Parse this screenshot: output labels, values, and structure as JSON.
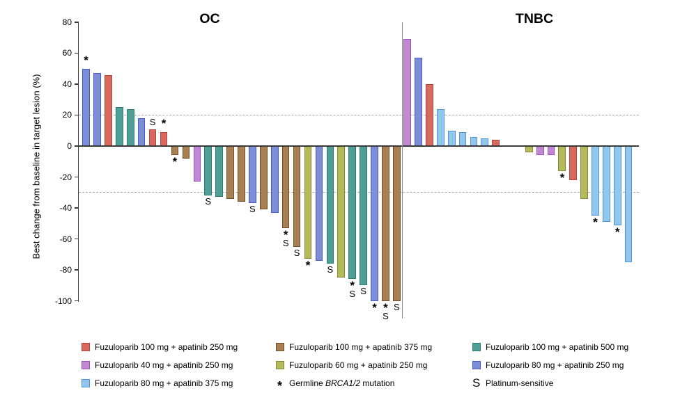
{
  "figure": {
    "background": "#ffffff"
  },
  "chart_data": {
    "type": "bar",
    "subtype": "waterfall",
    "title": "",
    "ylabel": "Best change from baseline in target lesion (%)",
    "ylim": [
      -100,
      80
    ],
    "yticks": [
      80,
      60,
      40,
      20,
      0,
      -20,
      -40,
      -60,
      -80,
      -100
    ],
    "reference_lines": [
      20,
      -30
    ],
    "grid": "off",
    "legend_position": "bottom",
    "groups": {
      "fz100_ap250": {
        "label": "Fuzuloparib 100 mg + apatinib 250 mg",
        "fill": "#d7695f",
        "stroke": "#b2443a"
      },
      "fz40_ap250": {
        "label": "Fuzuloparib 40 mg + apatinib 250 mg",
        "fill": "#c289d3",
        "stroke": "#9c50bd"
      },
      "fz80_ap375": {
        "label": "Fuzuloparib 80 mg + apatinib 375 mg",
        "fill": "#93c6ee",
        "stroke": "#4e95d6"
      },
      "fz100_ap375": {
        "label": "Fuzuloparib 100 mg + apatinib 375 mg",
        "fill": "#a87f52",
        "stroke": "#6d4f26"
      },
      "fz60_ap250": {
        "label": "Fuzuloparib 60 mg + apatinib 250 mg",
        "fill": "#b4b95c",
        "stroke": "#838833"
      },
      "fz100_ap500": {
        "label": "Fuzuloparib 100 mg + apatinib 500 mg",
        "fill": "#4f9f96",
        "stroke": "#2d7c72"
      },
      "fz80_ap250": {
        "label": "Fuzuloparib 80 mg + apatinib 250 mg",
        "fill": "#7e8ed6",
        "stroke": "#4859c8"
      }
    },
    "flag_meanings": {
      "*": "Germline BRCA1/2 mutation",
      "S": "Platinum-sensitive"
    },
    "panels": [
      {
        "title": "OC",
        "bars": [
          {
            "v": 50,
            "g": "fz80_ap250",
            "f": [
              "*"
            ]
          },
          {
            "v": 47,
            "g": "fz80_ap250"
          },
          {
            "v": 46,
            "g": "fz100_ap250"
          },
          {
            "v": 25,
            "g": "fz100_ap500"
          },
          {
            "v": 24,
            "g": "fz100_ap500"
          },
          {
            "v": 18,
            "g": "fz80_ap250"
          },
          {
            "v": 11,
            "g": "fz100_ap250",
            "f": [
              "S"
            ]
          },
          {
            "v": 9,
            "g": "fz100_ap250",
            "f": [
              "*"
            ]
          },
          {
            "v": -6,
            "g": "fz100_ap375",
            "f": [
              "*"
            ]
          },
          {
            "v": -8,
            "g": "fz100_ap375"
          },
          {
            "v": -23,
            "g": "fz40_ap250"
          },
          {
            "v": -32,
            "g": "fz100_ap500",
            "f": [
              "S"
            ]
          },
          {
            "v": -33,
            "g": "fz100_ap500"
          },
          {
            "v": -34,
            "g": "fz100_ap375"
          },
          {
            "v": -36,
            "g": "fz100_ap375"
          },
          {
            "v": -37,
            "g": "fz80_ap250",
            "f": [
              "S"
            ]
          },
          {
            "v": -41,
            "g": "fz100_ap375"
          },
          {
            "v": -43,
            "g": "fz80_ap250"
          },
          {
            "v": -53,
            "g": "fz100_ap375",
            "f": [
              "*",
              "S"
            ]
          },
          {
            "v": -65,
            "g": "fz100_ap375",
            "f": [
              "S"
            ]
          },
          {
            "v": -73,
            "g": "fz60_ap250",
            "f": [
              "*"
            ]
          },
          {
            "v": -74,
            "g": "fz80_ap250"
          },
          {
            "v": -76,
            "g": "fz100_ap500",
            "f": [
              "S"
            ]
          },
          {
            "v": -85,
            "g": "fz60_ap250"
          },
          {
            "v": -86,
            "g": "fz100_ap500",
            "f": [
              "*",
              "S"
            ]
          },
          {
            "v": -90,
            "g": "fz100_ap500",
            "f": [
              "S"
            ]
          },
          {
            "v": -100,
            "g": "fz80_ap250",
            "f": [
              "*"
            ]
          },
          {
            "v": -100,
            "g": "fz100_ap375",
            "f": [
              "*",
              "S"
            ]
          },
          {
            "v": -100,
            "g": "fz100_ap375",
            "f": [
              "S"
            ]
          }
        ]
      },
      {
        "title": "TNBC",
        "bars": [
          {
            "v": 69,
            "g": "fz40_ap250"
          },
          {
            "v": 57,
            "g": "fz80_ap250"
          },
          {
            "v": 40,
            "g": "fz100_ap250"
          },
          {
            "v": 24,
            "g": "fz80_ap375"
          },
          {
            "v": 10,
            "g": "fz80_ap375"
          },
          {
            "v": 9,
            "g": "fz80_ap375"
          },
          {
            "v": 6,
            "g": "fz80_ap375"
          },
          {
            "v": 5,
            "g": "fz80_ap375"
          },
          {
            "v": 4,
            "g": "fz100_ap250"
          },
          {
            "v": 0,
            "g": null
          },
          {
            "v": 0,
            "g": null
          },
          {
            "v": -4,
            "g": "fz60_ap250"
          },
          {
            "v": -6,
            "g": "fz40_ap250"
          },
          {
            "v": -6,
            "g": "fz40_ap250"
          },
          {
            "v": -16,
            "g": "fz60_ap250",
            "f": [
              "*"
            ]
          },
          {
            "v": -22,
            "g": "fz100_ap250"
          },
          {
            "v": -34,
            "g": "fz60_ap250"
          },
          {
            "v": -45,
            "g": "fz80_ap375",
            "f": [
              "*"
            ]
          },
          {
            "v": -49,
            "g": "fz80_ap375"
          },
          {
            "v": -51,
            "g": "fz80_ap375",
            "f": [
              "*"
            ]
          },
          {
            "v": -75,
            "g": "fz80_ap375"
          }
        ]
      }
    ]
  },
  "legend": {
    "items": [
      {
        "swatch": "fz100_ap250",
        "label": "Fuzuloparib 100 mg + apatinib 250 mg",
        "col": 0,
        "row": 0
      },
      {
        "swatch": "fz100_ap375",
        "label": "Fuzuloparib 100 mg + apatinib 375 mg",
        "col": 1,
        "row": 0
      },
      {
        "swatch": "fz100_ap500",
        "label": "Fuzuloparib 100 mg + apatinib 500 mg",
        "col": 2,
        "row": 0
      },
      {
        "swatch": "fz40_ap250",
        "label": "Fuzuloparib 40 mg + apatinib 250 mg",
        "col": 0,
        "row": 1
      },
      {
        "swatch": "fz60_ap250",
        "label": "Fuzuloparib 60 mg + apatinib 250 mg",
        "col": 1,
        "row": 1
      },
      {
        "swatch": "fz80_ap250",
        "label": "Fuzuloparib 80 mg + apatinib 250 mg",
        "col": 2,
        "row": 1
      },
      {
        "swatch": "fz80_ap375",
        "label": "Fuzuloparib 80 mg + apatinib 375 mg",
        "col": 0,
        "row": 2
      },
      {
        "symbol": "*",
        "label_parts": [
          {
            "t": "Germline "
          },
          {
            "t": "BRCA1/2",
            "i": true
          },
          {
            "t": " mutation"
          }
        ],
        "col": 1,
        "row": 2
      },
      {
        "symbol": "S",
        "label": "Platinum-sensitive",
        "col": 2,
        "row": 2
      }
    ]
  }
}
